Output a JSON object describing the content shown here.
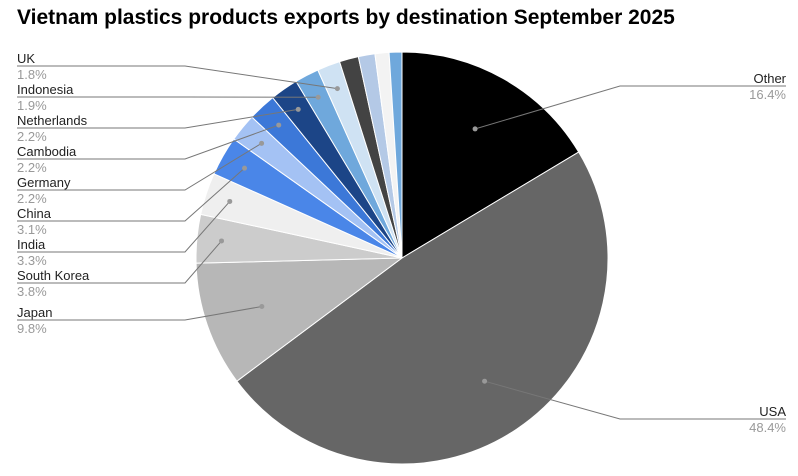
{
  "chart_data": {
    "type": "pie",
    "title": "Vietnam plastics products exports by destination September 2025",
    "start": "top",
    "direction": "clockwise",
    "legend": "leader-line labels",
    "slices": [
      {
        "name": "Other",
        "value": 16.4,
        "label": "16.4%",
        "color": "#000000"
      },
      {
        "name": "USA",
        "value": 48.4,
        "label": "48.4%",
        "color": "#666666"
      },
      {
        "name": "Japan",
        "value": 9.8,
        "label": "9.8%",
        "color": "#b7b7b7"
      },
      {
        "name": "South Korea",
        "value": 3.8,
        "label": "3.8%",
        "color": "#cccccc"
      },
      {
        "name": "India",
        "value": 3.3,
        "label": "3.3%",
        "color": "#efefef"
      },
      {
        "name": "China",
        "value": 3.1,
        "label": "3.1%",
        "color": "#4a86e8"
      },
      {
        "name": "Germany",
        "value": 2.2,
        "label": "2.2%",
        "color": "#a4c2f4"
      },
      {
        "name": "Cambodia",
        "value": 2.2,
        "label": "2.2%",
        "color": "#3c78d8"
      },
      {
        "name": "Netherlands",
        "value": 2.2,
        "label": "2.2%",
        "color": "#1c4587"
      },
      {
        "name": "Indonesia",
        "value": 1.9,
        "label": "1.9%",
        "color": "#6fa8dc"
      },
      {
        "name": "UK",
        "value": 1.8,
        "label": "1.8%",
        "color": "#cfe2f3"
      },
      {
        "name": "",
        "value": 1.5,
        "color": "#434343"
      },
      {
        "name": "",
        "value": 1.3,
        "color": "#b4c9e6"
      },
      {
        "name": "",
        "value": 1.1,
        "color": "#f3f3f3"
      },
      {
        "name": "",
        "value": 1.0,
        "color": "#6fa8dc"
      }
    ]
  }
}
